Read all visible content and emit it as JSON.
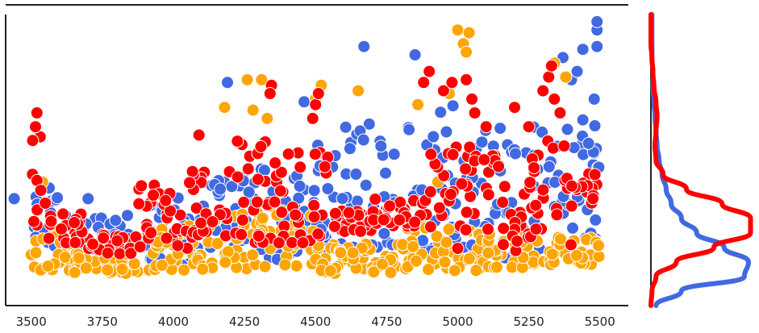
{
  "chart_data": [
    {
      "type": "scatter",
      "title": "",
      "xlabel": "",
      "ylabel": "",
      "xlim": [
        3410,
        5600
      ],
      "ylim": [
        0,
        1
      ],
      "x_ticks": [
        3500,
        3750,
        4000,
        4250,
        4500,
        4750,
        5000,
        5250,
        5500
      ],
      "x_tick_labels": [
        "3500",
        "3750",
        "4000",
        "4250",
        "4500",
        "4750",
        "5000",
        "5250",
        "5500"
      ],
      "y_ticks_visible": false,
      "grid": false,
      "legend": "none",
      "series": [
        {
          "color": "#4169E1",
          "bands": [
            {
              "x": [
                3500,
                3600
              ],
              "y_low": 0.14,
              "y_high": 0.38
            },
            {
              "x": [
                3600,
                3900
              ],
              "y_low": 0.09,
              "y_high": 0.28
            },
            {
              "x": [
                3900,
                4100
              ],
              "y_low": 0.1,
              "y_high": 0.35
            },
            {
              "x": [
                4100,
                4300
              ],
              "y_low": 0.15,
              "y_high": 0.42
            },
            {
              "x": [
                4300,
                4500
              ],
              "y_low": 0.12,
              "y_high": 0.45
            },
            {
              "x": [
                4500,
                4800
              ],
              "y_low": 0.15,
              "y_high": 0.62
            },
            {
              "x": [
                4800,
                5000
              ],
              "y_low": 0.15,
              "y_high": 0.7
            },
            {
              "x": [
                5000,
                5300
              ],
              "y_low": 0.12,
              "y_high": 0.6
            },
            {
              "x": [
                5300,
                5500
              ],
              "y_low": 0.18,
              "y_high": 0.65
            }
          ],
          "highlights": [
            {
              "x": 3620,
              "y": 0.28
            },
            {
              "x": 3700,
              "y": 0.34
            },
            {
              "x": 4190,
              "y": 0.76
            },
            {
              "x": 4460,
              "y": 0.69
            },
            {
              "x": 4670,
              "y": 0.89
            },
            {
              "x": 4730,
              "y": 0.53
            },
            {
              "x": 4850,
              "y": 0.86
            },
            {
              "x": 5370,
              "y": 0.85
            },
            {
              "x": 5400,
              "y": 0.77
            },
            {
              "x": 5440,
              "y": 0.88
            },
            {
              "x": 5490,
              "y": 0.95
            },
            {
              "x": 5490,
              "y": 0.98
            },
            {
              "x": 5490,
              "y": 0.89
            },
            {
              "x": 5480,
              "y": 0.7
            },
            {
              "x": 5460,
              "y": 0.54
            },
            {
              "x": 5420,
              "y": 0.8
            },
            {
              "x": 4030,
              "y": 0.1
            },
            {
              "x": 3440,
              "y": 0.34
            }
          ]
        },
        {
          "color": "#FFA500",
          "bands": [
            {
              "x": [
                3500,
                3650
              ],
              "y_low": 0.08,
              "y_high": 0.22
            },
            {
              "x": [
                3650,
                3900
              ],
              "y_low": 0.07,
              "y_high": 0.15
            },
            {
              "x": [
                3900,
                4100
              ],
              "y_low": 0.08,
              "y_high": 0.25
            },
            {
              "x": [
                4100,
                4300
              ],
              "y_low": 0.08,
              "y_high": 0.3
            },
            {
              "x": [
                4300,
                4500
              ],
              "y_low": 0.09,
              "y_high": 0.32
            },
            {
              "x": [
                4500,
                4800
              ],
              "y_low": 0.07,
              "y_high": 0.18
            },
            {
              "x": [
                4800,
                5100
              ],
              "y_low": 0.08,
              "y_high": 0.25
            },
            {
              "x": [
                5100,
                5300
              ],
              "y_low": 0.09,
              "y_high": 0.22
            },
            {
              "x": [
                5300,
                5500
              ],
              "y_low": 0.1,
              "y_high": 0.2
            }
          ],
          "highlights": [
            {
              "x": 5000,
              "y": 0.95
            },
            {
              "x": 5020,
              "y": 0.9
            },
            {
              "x": 5030,
              "y": 0.87
            },
            {
              "x": 5040,
              "y": 0.94
            },
            {
              "x": 4180,
              "y": 0.67
            },
            {
              "x": 4260,
              "y": 0.77
            },
            {
              "x": 4310,
              "y": 0.77
            },
            {
              "x": 4280,
              "y": 0.66
            },
            {
              "x": 4330,
              "y": 0.63
            },
            {
              "x": 4500,
              "y": 0.7
            },
            {
              "x": 4520,
              "y": 0.75
            },
            {
              "x": 4650,
              "y": 0.73
            },
            {
              "x": 4860,
              "y": 0.68
            },
            {
              "x": 4970,
              "y": 0.72
            },
            {
              "x": 5340,
              "y": 0.83
            },
            {
              "x": 5380,
              "y": 0.78
            },
            {
              "x": 3540,
              "y": 0.4
            },
            {
              "x": 4930,
              "y": 0.4
            }
          ]
        },
        {
          "color": "#FF0000",
          "bands": [
            {
              "x": [
                3500,
                3550
              ],
              "y_low": 0.22,
              "y_high": 0.58
            },
            {
              "x": [
                3550,
                3700
              ],
              "y_low": 0.18,
              "y_high": 0.3
            },
            {
              "x": [
                3700,
                3850
              ],
              "y_low": 0.14,
              "y_high": 0.22
            },
            {
              "x": [
                3850,
                3950
              ],
              "y_low": 0.14,
              "y_high": 0.42
            },
            {
              "x": [
                3950,
                4050
              ],
              "y_low": 0.16,
              "y_high": 0.38
            },
            {
              "x": [
                4050,
                4200
              ],
              "y_low": 0.2,
              "y_high": 0.48
            },
            {
              "x": [
                4200,
                4350
              ],
              "y_low": 0.18,
              "y_high": 0.55
            },
            {
              "x": [
                4350,
                4550
              ],
              "y_low": 0.18,
              "y_high": 0.52
            },
            {
              "x": [
                4550,
                4700
              ],
              "y_low": 0.22,
              "y_high": 0.3
            },
            {
              "x": [
                4700,
                4900
              ],
              "y_low": 0.24,
              "y_high": 0.34
            },
            {
              "x": [
                4900,
                5150
              ],
              "y_low": 0.22,
              "y_high": 0.55
            },
            {
              "x": [
                5150,
                5250
              ],
              "y_low": 0.15,
              "y_high": 0.45
            },
            {
              "x": [
                5250,
                5400
              ],
              "y_low": 0.15,
              "y_high": 0.55
            },
            {
              "x": [
                5400,
                5500
              ],
              "y_low": 0.3,
              "y_high": 0.45
            }
          ],
          "highlights": [
            {
              "x": 3520,
              "y": 0.65
            },
            {
              "x": 3515,
              "y": 0.6
            },
            {
              "x": 3505,
              "y": 0.55
            },
            {
              "x": 4090,
              "y": 0.57
            },
            {
              "x": 4345,
              "y": 0.75
            },
            {
              "x": 4340,
              "y": 0.72
            },
            {
              "x": 4500,
              "y": 0.68
            },
            {
              "x": 4510,
              "y": 0.72
            },
            {
              "x": 4490,
              "y": 0.63
            },
            {
              "x": 4880,
              "y": 0.76
            },
            {
              "x": 4900,
              "y": 0.8
            },
            {
              "x": 4950,
              "y": 0.73
            },
            {
              "x": 4980,
              "y": 0.76
            },
            {
              "x": 5030,
              "y": 0.77
            },
            {
              "x": 5050,
              "y": 0.7
            },
            {
              "x": 5060,
              "y": 0.65
            },
            {
              "x": 5100,
              "y": 0.6
            },
            {
              "x": 5200,
              "y": 0.67
            },
            {
              "x": 5320,
              "y": 0.78
            },
            {
              "x": 5330,
              "y": 0.82
            },
            {
              "x": 5300,
              "y": 0.73
            },
            {
              "x": 5340,
              "y": 0.7
            },
            {
              "x": 5360,
              "y": 0.65
            },
            {
              "x": 5250,
              "y": 0.6
            },
            {
              "x": 5000,
              "y": 0.16
            }
          ]
        }
      ]
    },
    {
      "type": "area",
      "orientation": "vertical-density",
      "title": "",
      "xlabel": "",
      "ylabel": "",
      "ylim": [
        0,
        1
      ],
      "series": [
        {
          "color": "#4169E1",
          "y": [
            0.0,
            0.05,
            0.1,
            0.15,
            0.2,
            0.25,
            0.3,
            0.35,
            0.4,
            0.45,
            0.5,
            0.55,
            0.6,
            0.65,
            0.7,
            0.75,
            0.8,
            0.85,
            0.9,
            0.95,
            1.0
          ],
          "density": [
            0.05,
            0.3,
            0.92,
            0.96,
            0.72,
            0.45,
            0.3,
            0.2,
            0.15,
            0.11,
            0.08,
            0.06,
            0.05,
            0.04,
            0.03,
            0.02,
            0.02,
            0.01,
            0.01,
            0.01,
            0.01
          ]
        },
        {
          "color": "#FF0000",
          "y": [
            0.0,
            0.05,
            0.1,
            0.15,
            0.2,
            0.25,
            0.3,
            0.35,
            0.4,
            0.45,
            0.5,
            0.55,
            0.6,
            0.65,
            0.7,
            0.75,
            0.8,
            0.85,
            0.9,
            0.95,
            1.0
          ],
          "density": [
            0.0,
            0.01,
            0.05,
            0.25,
            0.62,
            0.98,
            0.98,
            0.7,
            0.35,
            0.12,
            0.05,
            0.04,
            0.05,
            0.06,
            0.05,
            0.03,
            0.02,
            0.01,
            0.0,
            0.0,
            0.0
          ]
        }
      ]
    }
  ]
}
